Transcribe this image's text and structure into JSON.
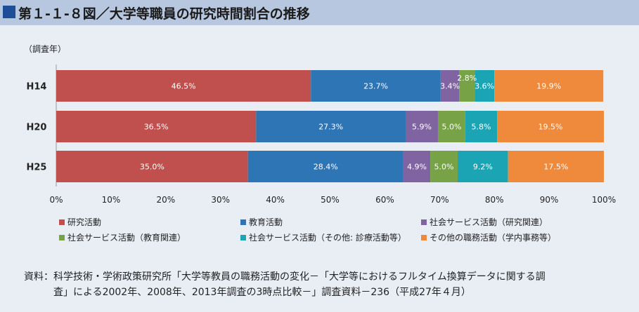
{
  "title": "第１-１-８図／大学等職員の研究時間割合の推移",
  "source": {
    "line1": "資料：科学技術・学術政策研究所「大学等教員の職務活動の変化－「大学等におけるフルタイム換算データに関する調",
    "line2": "査」による2002年、2008年、2013年調査の3時点比較－」調査資料－236（平成27年４月）"
  },
  "chart_data": {
    "type": "bar",
    "orientation": "horizontal",
    "stacked": true,
    "y_axis_label": "（調査年）",
    "categories": [
      "H14",
      "H20",
      "H25"
    ],
    "xlim": [
      0,
      100
    ],
    "x_ticks": [
      "0%",
      "10%",
      "20%",
      "30%",
      "40%",
      "50%",
      "60%",
      "70%",
      "80%",
      "90%",
      "100%"
    ],
    "legend_position": "bottom",
    "series": [
      {
        "name": "研究活動",
        "color": "#c0504d",
        "values": [
          46.5,
          36.5,
          35.0
        ],
        "labels": [
          "46.5%",
          "36.5%",
          "35.0%"
        ]
      },
      {
        "name": "教育活動",
        "color": "#2e75b6",
        "values": [
          23.7,
          27.3,
          28.4
        ],
        "labels": [
          "23.7%",
          "27.3%",
          "28.4%"
        ]
      },
      {
        "name": "社会サービス活動（研究関連）",
        "color": "#8064a2",
        "values": [
          3.4,
          5.9,
          4.9
        ],
        "labels": [
          "3.4%",
          "5.9%",
          "4.9%"
        ]
      },
      {
        "name": "社会サービス活動（教育関連）",
        "color": "#77a346",
        "values": [
          2.8,
          5.0,
          5.0
        ],
        "labels": [
          "2.8%",
          "5.0%",
          "5.0%"
        ]
      },
      {
        "name": "社会サービス活動（その他: 診療活動等）",
        "color": "#1ba4b4",
        "values": [
          3.6,
          5.8,
          9.2
        ],
        "labels": [
          "3.6%",
          "5.8%",
          "9.2%"
        ]
      },
      {
        "name": "その他の職務活動（学内事務等）",
        "color": "#ef8a3c",
        "values": [
          19.9,
          19.5,
          17.5
        ],
        "labels": [
          "19.9%",
          "19.5%",
          "17.5%"
        ]
      }
    ]
  }
}
